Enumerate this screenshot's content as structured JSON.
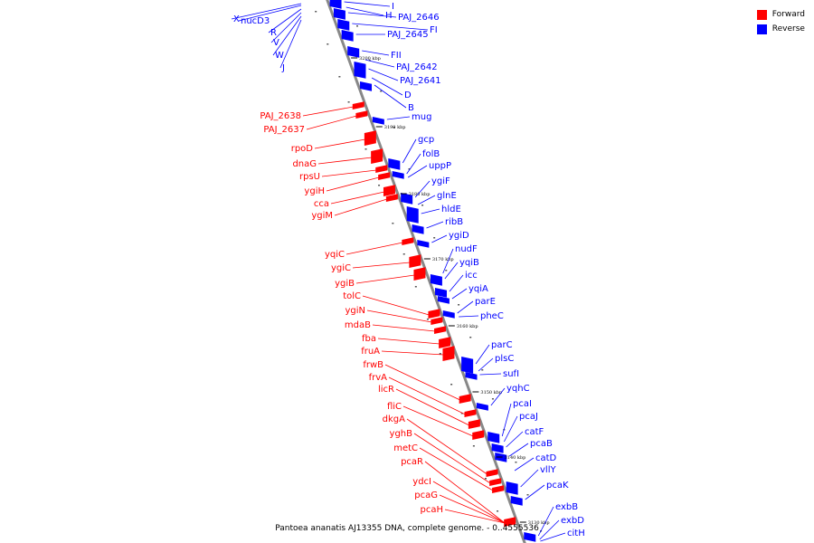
{
  "legend": {
    "forward": {
      "label": "Forward",
      "color": "#ff0000"
    },
    "reverse": {
      "label": "Reverse",
      "color": "#0000ff"
    }
  },
  "caption": "Pantoea ananatis AJ13355 DNA, complete genome. - 0..4555536",
  "axis_color": "#888888",
  "ticks": [
    "3200 kbp",
    "3190 kbp",
    "3180 kbp",
    "3170 kbp",
    "3160 kbp",
    "3150 kbp",
    "3140 kbp",
    "3130 kbp"
  ],
  "forward_genes": [
    "PAJ_2638",
    "PAJ_2637",
    "rpoD",
    "dnaG",
    "rpsU",
    "ygiH",
    "cca",
    "ygiM",
    "yqiC",
    "ygiC",
    "ygiB",
    "tolC",
    "ygiN",
    "mdaB",
    "fba",
    "fruA",
    "frwB",
    "frvA",
    "licR",
    "fliC",
    "dkgA",
    "yghB",
    "metC",
    "pcaR",
    "ydcI",
    "pcaG",
    "pcaH"
  ],
  "reverse_genes_left": [
    "X",
    "nucD3",
    "R",
    "V",
    "W",
    "J"
  ],
  "reverse_genes_right": [
    "I",
    "H",
    "PAJ_2646",
    "FI",
    "PAJ_2645",
    "FII",
    "PAJ_2642",
    "PAJ_2641",
    "D",
    "B",
    "mug",
    "gcp",
    "folB",
    "uppP",
    "ygiF",
    "glnE",
    "hldE",
    "ribB",
    "ygiD",
    "nudF",
    "yqiB",
    "icc",
    "yqiA",
    "parE",
    "pheC",
    "parC",
    "plsC",
    "sufI",
    "yqhC",
    "pcaI",
    "pcaJ",
    "catF",
    "pcaB",
    "catD",
    "vllY",
    "pcaK",
    "exbB",
    "exbD",
    "citH"
  ]
}
